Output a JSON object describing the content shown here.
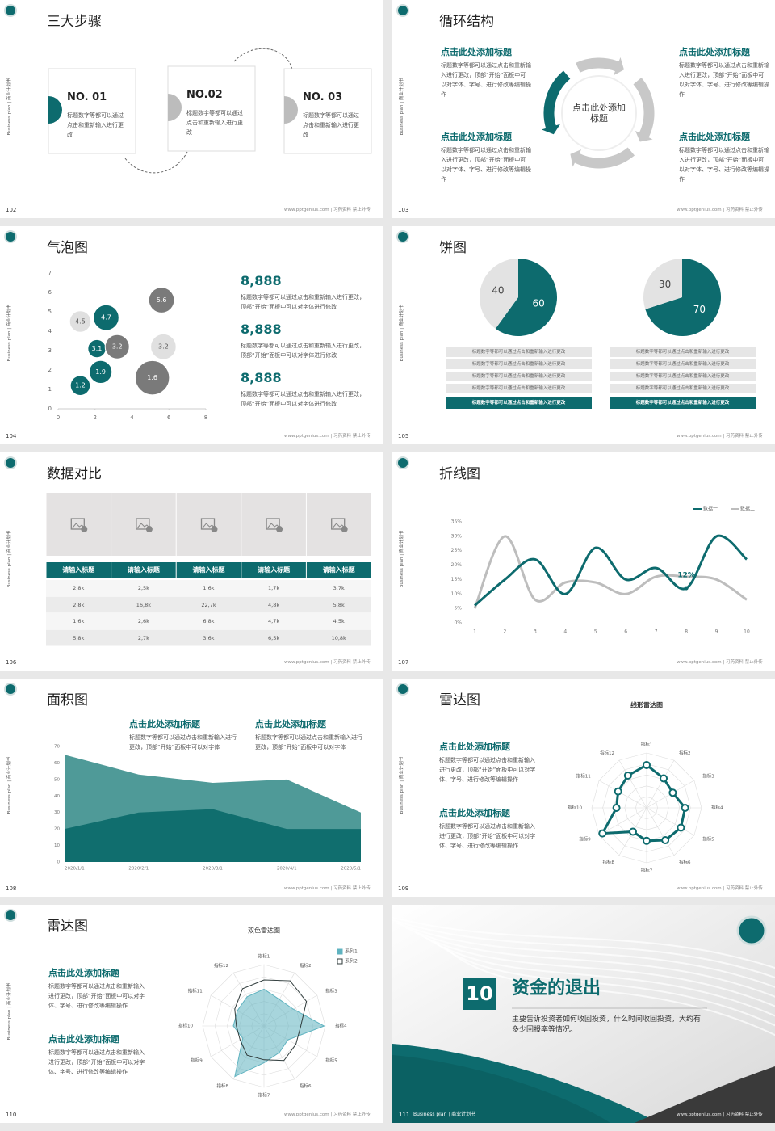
{
  "footer": "www.pptgenius.com | 习药资料 禁止外传",
  "side_label": "Business plan | 商业计划书",
  "slides": [
    {
      "page": "102",
      "title": "三大步骤",
      "steps": [
        {
          "no": "NO. 01",
          "text": "标题数字等都可以通过点击和重新输入进行更改"
        },
        {
          "no": "NO.02",
          "text": "标题数字等都可以通过点击和重新输入进行更改"
        },
        {
          "no": "NO. 03",
          "text": "标题数字等都可以通过点击和重新输入进行更改"
        }
      ]
    },
    {
      "page": "103",
      "title": "循环结构",
      "center": "点击此处添加标题",
      "items": [
        {
          "heading": "点击此处添加标题",
          "text": "标题数字等都可以通过点击和重新输入进行更改，顶部“开始”面板中可以对字体、字号、进行修改等编辑操作"
        },
        {
          "heading": "点击此处添加标题",
          "text": "标题数字等都可以通过点击和重新输入进行更改，顶部“开始”面板中可以对字体、字号、进行修改等编辑操作"
        },
        {
          "heading": "点击此处添加标题",
          "text": "标题数字等都可以通过点击和重新输入进行更改，顶部“开始”面板中可以对字体、字号、进行修改等编辑操作"
        },
        {
          "heading": "点击此处添加标题",
          "text": "标题数字等都可以通过点击和重新输入进行更改，顶部“开始”面板中可以对字体、字号、进行修改等编辑操作"
        }
      ]
    },
    {
      "page": "104",
      "title": "气泡图",
      "stats": [
        {
          "value": "8,888",
          "text": "标题数字等都可以通过点击和重新输入进行更改，顶部“开始”面板中可以对字体进行修改"
        },
        {
          "value": "8,888",
          "text": "标题数字等都可以通过点击和重新输入进行更改，顶部“开始”面板中可以对字体进行修改"
        },
        {
          "value": "8,888",
          "text": "标题数字等都可以通过点击和重新输入进行更改，顶部“开始”面板中可以对字体进行修改"
        }
      ]
    },
    {
      "page": "105",
      "title": "饼图",
      "rows": [
        [
          "标题数字等都可以通过点击和重新输入进行更改",
          "标题数字等都可以通过点击和重新输入进行更改",
          "标题数字等都可以通过点击和重新输入进行更改",
          "标题数字等都可以通过点击和重新输入进行更改",
          "标题数字等都可以通过点击和重新输入进行更改"
        ],
        [
          "标题数字等都可以通过点击和重新输入进行更改",
          "标题数字等都可以通过点击和重新输入进行更改",
          "标题数字等都可以通过点击和重新输入进行更改",
          "标题数字等都可以通过点击和重新输入进行更改",
          "标题数字等都可以通过点击和重新输入进行更改"
        ]
      ]
    },
    {
      "page": "106",
      "title": "数据对比",
      "table": {
        "headers": [
          "请输入标题",
          "请输入标题",
          "请输入标题",
          "请输入标题",
          "请输入标题"
        ],
        "rows": [
          [
            "2,8k",
            "2,5k",
            "1,6k",
            "1,7k",
            "3,7k"
          ],
          [
            "2,8k",
            "16,8k",
            "22,7k",
            "4,8k",
            "5,8k"
          ],
          [
            "1,6k",
            "2,6k",
            "6,8k",
            "4,7k",
            "4,5k"
          ],
          [
            "5,8k",
            "2,7k",
            "3,6k",
            "6,5k",
            "10,8k"
          ]
        ]
      }
    },
    {
      "page": "107",
      "title": "折线图"
    },
    {
      "page": "108",
      "title": "面积图",
      "items": [
        {
          "heading": "点击此处添加标题",
          "text": "标题数字等都可以通过点击和重新输入进行更改，顶部“开始”面板中可以对字体"
        },
        {
          "heading": "点击此处添加标题",
          "text": "标题数字等都可以通过点击和重新输入进行更改，顶部“开始”面板中可以对字体"
        }
      ]
    },
    {
      "page": "109",
      "title": "雷达图",
      "items": [
        {
          "heading": "点击此处添加标题",
          "text": "标题数字等都可以通过点击和重新输入进行更改，顶部“开始”面板中可以对字体、字号、进行修改等编辑操作"
        },
        {
          "heading": "点击此处添加标题",
          "text": "标题数字等都可以通过点击和重新输入进行更改，顶部“开始”面板中可以对字体、字号、进行修改等编辑操作"
        }
      ]
    },
    {
      "page": "110",
      "title": "雷达图",
      "items": [
        {
          "heading": "点击此处添加标题",
          "text": "标题数字等都可以通过点击和重新输入进行更改，顶部“开始”面板中可以对字体、字号、进行修改等编辑操作"
        },
        {
          "heading": "点击此处添加标题",
          "text": "标题数字等都可以通过点击和重新输入进行更改，顶部“开始”面板中可以对字体、字号、进行修改等编辑操作"
        }
      ]
    },
    {
      "page": "111",
      "number": "10",
      "title": "资金的退出",
      "text": "主要告诉投资者如何收回投资，什么时间收回投资，大约有多少回报率等情况。"
    }
  ],
  "chart_data": [
    {
      "type": "bubble",
      "x": [
        1.2,
        2.6,
        5.6,
        2.1,
        3.2,
        5.7,
        2.3,
        1.2,
        5.1
      ],
      "y": [
        4.5,
        4.7,
        5.6,
        3.1,
        3.2,
        3.2,
        1.9,
        1.2,
        1.6
      ],
      "sizes": [
        7,
        10,
        10,
        5,
        9,
        10,
        8,
        6,
        18
      ],
      "colors": [
        "#e0e0e0",
        "#0d6b6e",
        "#7a7a7a",
        "#0d6b6e",
        "#7a7a7a",
        "#e0e0e0",
        "#0d6b6e",
        "#0d6b6e",
        "#7a7a7a"
      ],
      "xlim": [
        0,
        8
      ],
      "xticks": [
        0,
        2,
        4,
        6,
        8
      ],
      "ylim": [
        0,
        7
      ],
      "yticks": [
        0,
        1,
        2,
        3,
        4,
        5,
        6,
        7
      ]
    },
    {
      "type": "pie",
      "values": [
        60,
        40
      ],
      "colors": [
        "#0d6b6e",
        "#e3e3e3"
      ]
    },
    {
      "type": "pie",
      "values": [
        70,
        30
      ],
      "colors": [
        "#0d6b6e",
        "#e3e3e3"
      ]
    },
    {
      "type": "line",
      "x": [
        1,
        2,
        3,
        4,
        5,
        6,
        7,
        8,
        9,
        10
      ],
      "xlim": [
        1,
        10
      ],
      "xticks": [
        1,
        2,
        3,
        4,
        5,
        6,
        7,
        8,
        9,
        10
      ],
      "ylim": [
        0,
        35
      ],
      "yticks": [
        {
          "value": 0,
          "label": "0%"
        },
        {
          "value": 5,
          "label": "5%"
        },
        {
          "value": 10,
          "label": "10%"
        },
        {
          "value": 15,
          "label": "15%"
        },
        {
          "value": 20,
          "label": "20%"
        },
        {
          "value": 25,
          "label": "25%"
        },
        {
          "value": 30,
          "label": "30%"
        },
        {
          "value": 35,
          "label": "35%"
        }
      ],
      "series": [
        {
          "name": "数据一",
          "color": "#0d6b6e",
          "values": [
            6,
            15,
            22,
            10,
            26,
            15,
            19,
            12,
            30,
            22
          ],
          "value_labels": [
            null,
            null,
            null,
            null,
            null,
            null,
            null,
            "12%",
            null,
            null
          ]
        },
        {
          "name": "数据二",
          "color": "#bdbdbd",
          "values": [
            5,
            30,
            8,
            14,
            14,
            10,
            16,
            16,
            15,
            8
          ]
        }
      ]
    },
    {
      "type": "area",
      "categories": [
        "2020/1/1",
        "2020/2/1",
        "2020/3/1",
        "2020/4/1",
        "2020/5/1"
      ],
      "ylim": [
        0,
        70
      ],
      "yticks": [
        0,
        10,
        20,
        30,
        40,
        50,
        60,
        70
      ],
      "series": [
        {
          "color": "#4f9a98",
          "values": [
            65,
            53,
            48,
            50,
            30
          ]
        },
        {
          "color": "#106e6e",
          "values": [
            20,
            30,
            32,
            20,
            20
          ]
        }
      ]
    },
    {
      "type": "radar",
      "title": "线形雷达图",
      "categories": [
        "指标1",
        "指标2",
        "指标3",
        "指标4",
        "指标5",
        "指标6",
        "指标7",
        "指标8",
        "指标9",
        "指标10",
        "指标11",
        "指标12"
      ],
      "rlim": [
        0,
        100
      ],
      "series": [
        {
          "color": "#0d6b6e",
          "values": [
            78,
            62,
            55,
            70,
            72,
            68,
            60,
            50,
            93,
            55,
            60,
            68
          ]
        }
      ]
    },
    {
      "type": "radar",
      "title": "双色雷达图",
      "categories": [
        "指标1",
        "指标2",
        "指标3",
        "指标4",
        "指标5",
        "指标6",
        "指标7",
        "指标8",
        "指标9",
        "指标10",
        "指标11",
        "指标12"
      ],
      "rlim": [
        0,
        100
      ],
      "legend": "top-right",
      "series": [
        {
          "name": "系列1",
          "color": "#5fb3c0",
          "values": [
            60,
            50,
            55,
            98,
            45,
            50,
            60,
            95,
            40,
            50,
            50,
            55
          ]
        },
        {
          "name": "系列2",
          "color": "#2f3b3b",
          "values": [
            75,
            85,
            80,
            60,
            60,
            65,
            55,
            55,
            45,
            45,
            55,
            70
          ]
        }
      ]
    }
  ]
}
